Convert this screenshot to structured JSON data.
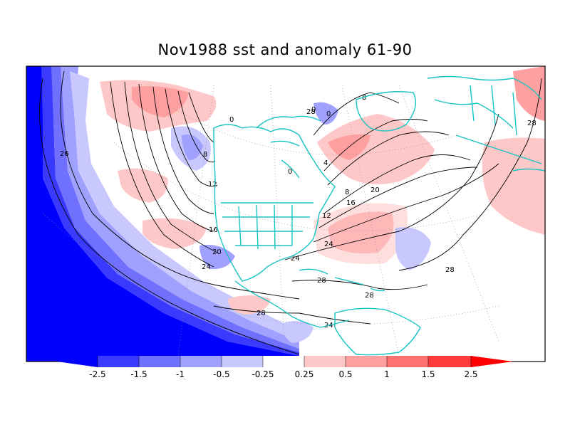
{
  "title": "Nov1988 sst and anomaly 61-90",
  "colorbar": {
    "labels": [
      "-2.5",
      "-1.5",
      "-1",
      "-0.5",
      "-0.25",
      "0.25",
      "0.5",
      "1",
      "1.5",
      "2.5"
    ],
    "colors": [
      "#0000ff",
      "#3a3aff",
      "#7070ff",
      "#a0a0ff",
      "#c8c8ff",
      "#ffffff",
      "#ffc8c8",
      "#ffa0a0",
      "#ff7070",
      "#ff3a3a",
      "#ff0000"
    ]
  },
  "contour_labels": [
    "26",
    "0",
    "8",
    "12",
    "16",
    "20",
    "24",
    "28",
    "0",
    "4",
    "0",
    "0",
    "8",
    "8",
    "12",
    "16",
    "20",
    "24",
    "24",
    "28",
    "28",
    "28",
    "28",
    "28",
    "24"
  ],
  "colors": {
    "land_outline": "#19c3c3",
    "contour": "#000000",
    "frame": "#000000"
  }
}
